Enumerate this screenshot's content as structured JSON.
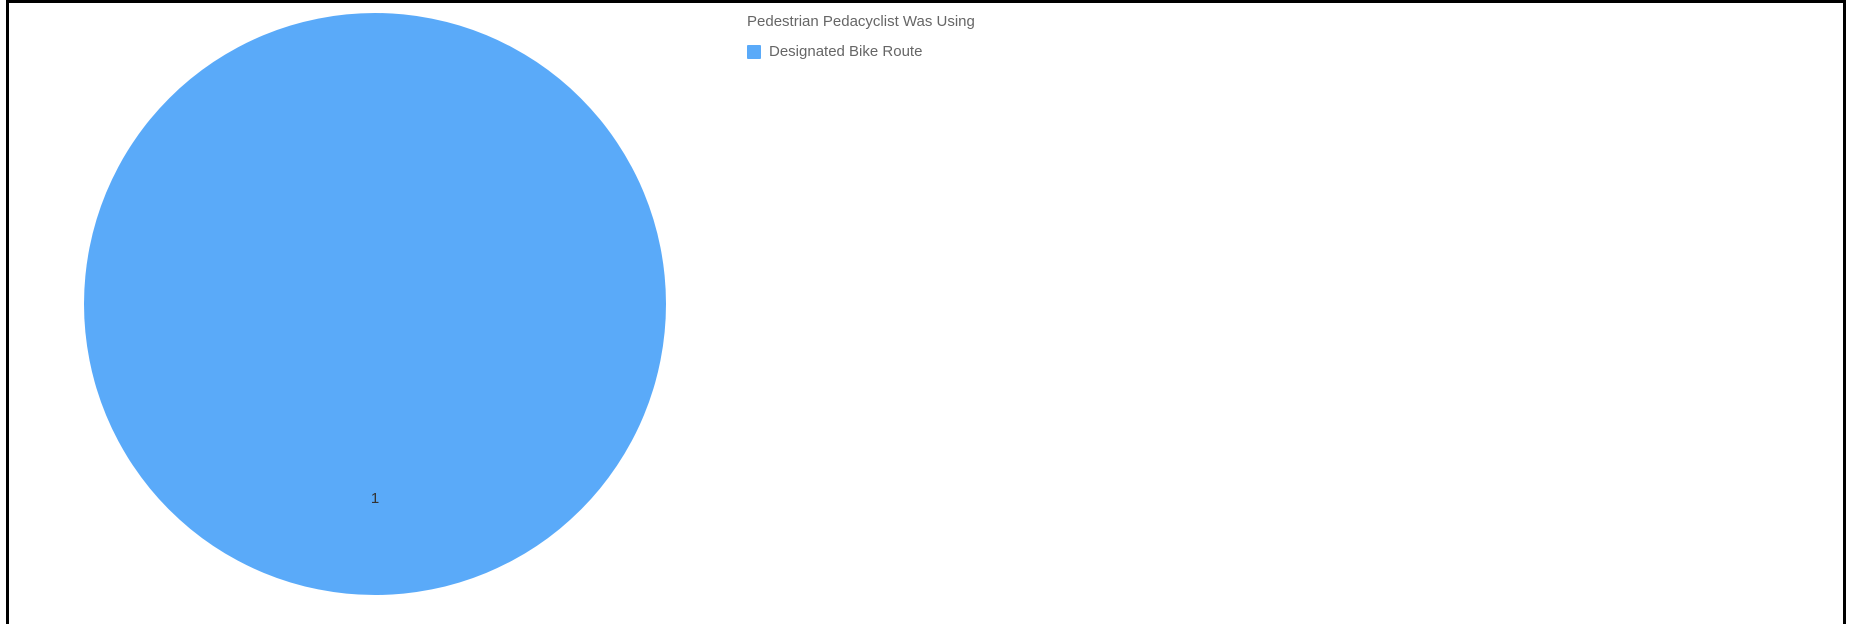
{
  "chart_data": {
    "type": "pie",
    "legend_title": "Pedestrian Pedacyclist Was Using",
    "legend_position": "top-right",
    "categories": [
      "Designated Bike Route"
    ],
    "values": [
      1
    ],
    "data_labels": [
      "1"
    ],
    "colors": [
      "#5aaaf9"
    ]
  }
}
